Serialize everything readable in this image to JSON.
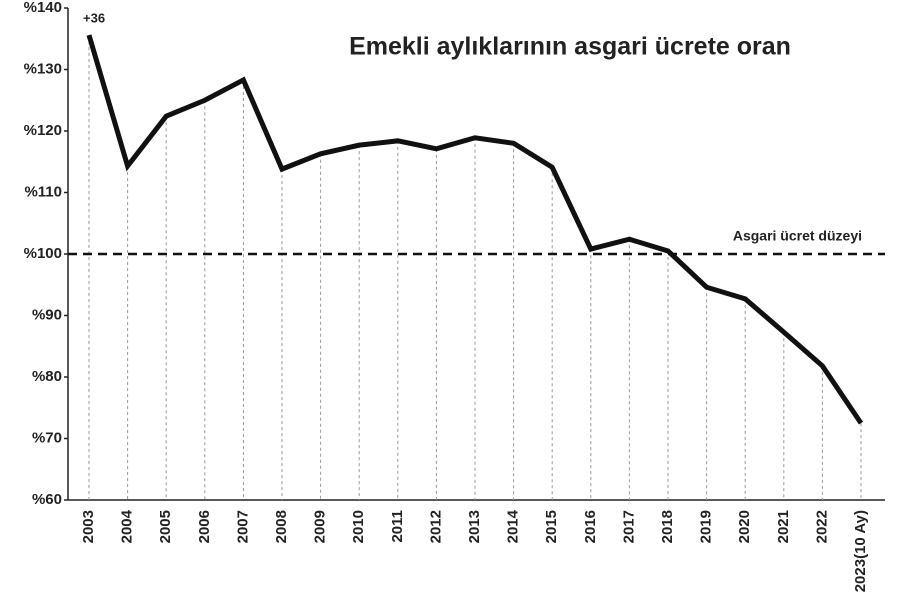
{
  "chart_data": {
    "type": "line",
    "title": "Emekli aylıklarının asgari ücrete oran",
    "categories": [
      "2003",
      "2004",
      "2005",
      "2006",
      "2007",
      "2008",
      "2009",
      "2010",
      "2011",
      "2012",
      "2013",
      "2014",
      "2015",
      "2016",
      "2017",
      "2018",
      "2019",
      "2020",
      "2021",
      "2022",
      "2023(10 Ay)"
    ],
    "values": [
      135.6,
      114.3,
      122.4,
      125,
      128.3,
      113.8,
      116.3,
      117.7,
      118.4,
      117.1,
      118.9,
      118,
      114.1,
      100.8,
      102.4,
      100.5,
      94.6,
      92.7,
      87.3,
      81.8,
      72.5
    ],
    "color": "#111111",
    "ylim": [
      60,
      140
    ],
    "yticks": [
      {
        "value": 60,
        "label": "%60"
      },
      {
        "value": 70,
        "label": "%70"
      },
      {
        "value": 80,
        "label": "%80"
      },
      {
        "value": 90,
        "label": "%90"
      },
      {
        "value": 100,
        "label": "%100"
      },
      {
        "value": 110,
        "label": "%110"
      },
      {
        "value": 120,
        "label": "%120"
      },
      {
        "value": 130,
        "label": "%130"
      },
      {
        "value": 140,
        "label": "%140"
      }
    ],
    "reference_line": {
      "value": 100,
      "label": "Asgari ücret düzeyi"
    },
    "annotations": [
      {
        "text": "+36",
        "category_index": 0
      }
    ],
    "drop_lines": true
  }
}
